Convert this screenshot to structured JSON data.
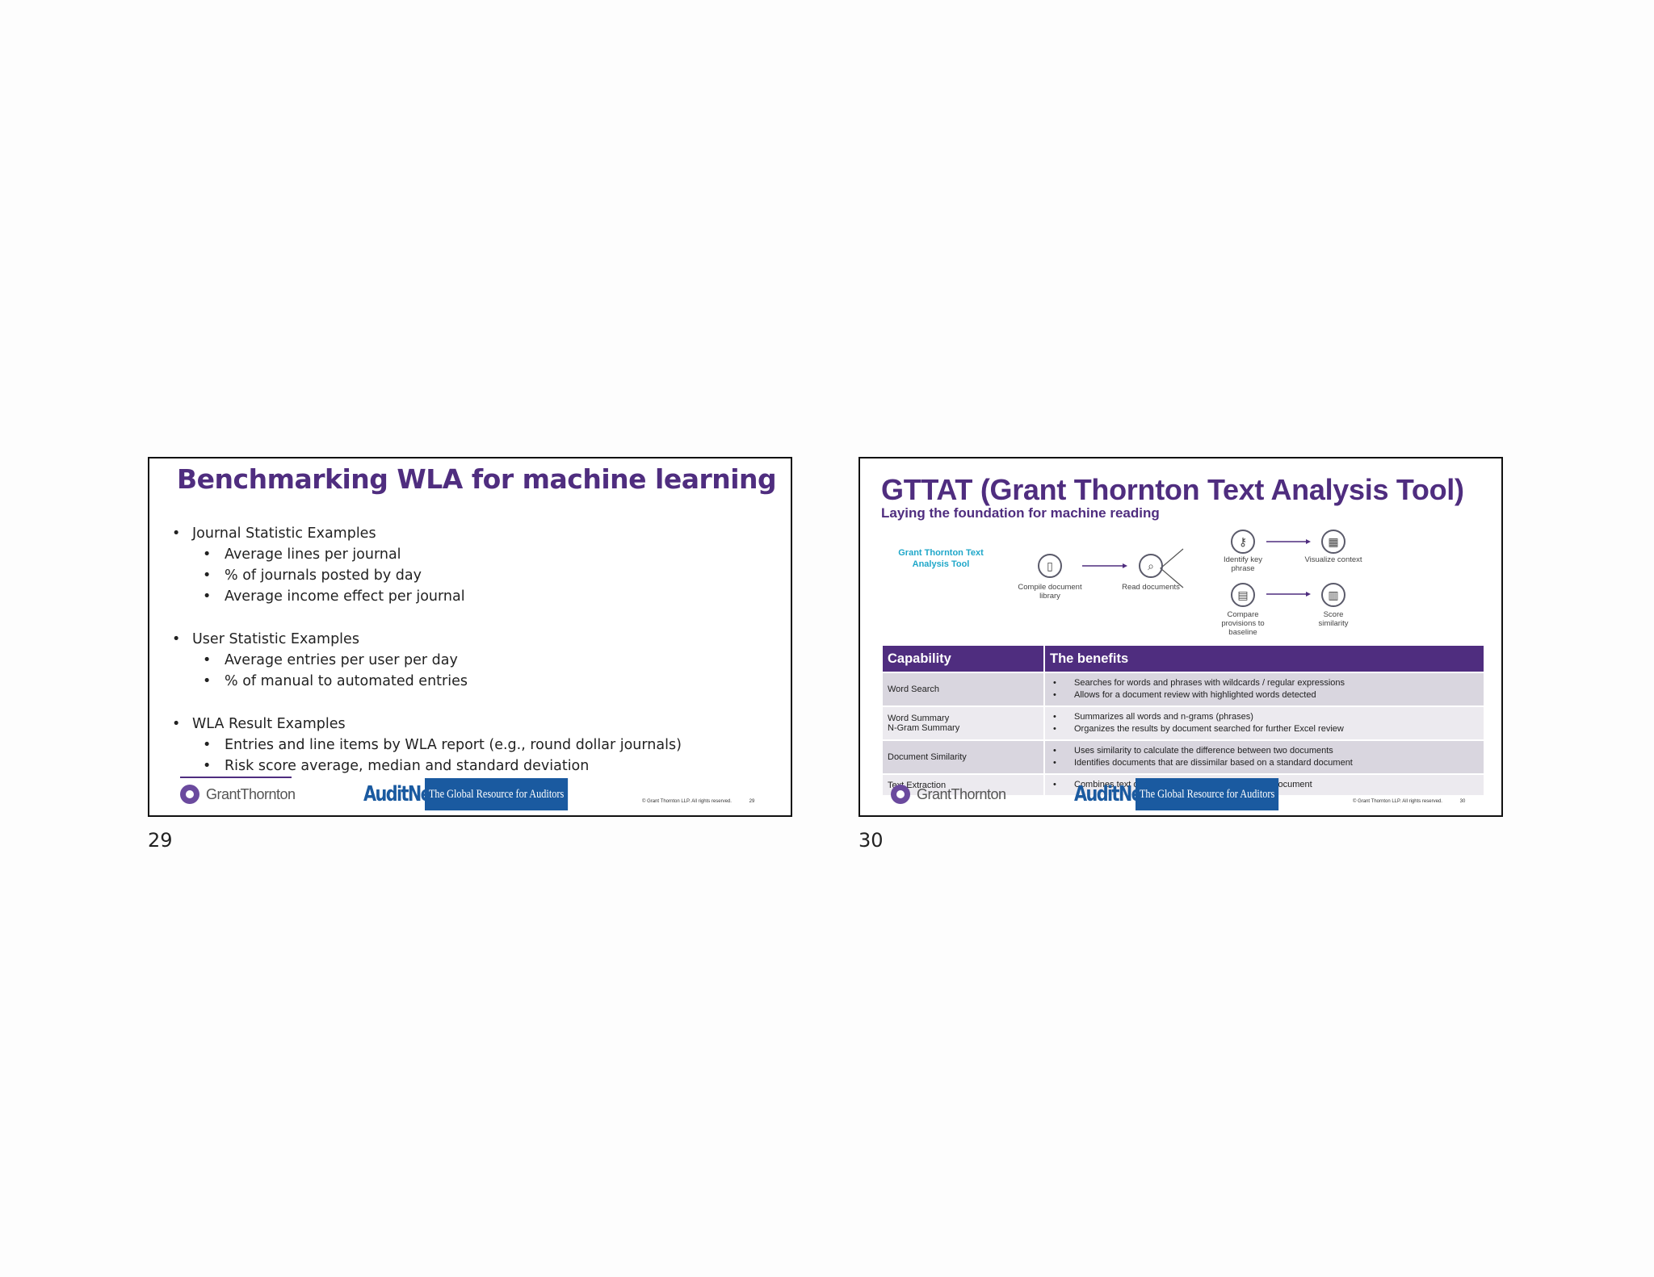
{
  "slide29": {
    "title": "Benchmarking WLA for machine learning",
    "sections": [
      {
        "heading": "Journal Statistic Examples",
        "items": [
          "Average lines per journal",
          "% of journals posted by day",
          "Average income effect per journal"
        ]
      },
      {
        "heading": "User Statistic Examples",
        "items": [
          "Average entries per user per day",
          "% of manual to automated entries"
        ]
      },
      {
        "heading": "WLA Result Examples",
        "items": [
          "Entries and line items by WLA report (e.g., round dollar journals)",
          "Risk score average, median and standard deviation"
        ]
      }
    ],
    "copyright": "© Grant Thornton LLP. All rights reserved.",
    "slide_number": "29",
    "page_number": "29"
  },
  "slide30": {
    "title": "GTTAT (Grant Thornton Text Analysis Tool)",
    "subtitle": "Laying the foundation for machine reading",
    "diagram": {
      "tool_label": "Grant Thornton Text Analysis Tool",
      "step1": "Compile document library",
      "step2": "Read documents",
      "step3a": "Identify key phrase",
      "step4a": "Visualize context",
      "step3b": "Compare provisions to baseline",
      "step4b": "Score similarity",
      "icons": [
        "book-icon",
        "magnifier-icon",
        "key-icon",
        "chart-window-icon",
        "document-icon",
        "score-chart-icon"
      ]
    },
    "table": {
      "headers": [
        "Capability",
        "The benefits"
      ],
      "rows": [
        {
          "capability": [
            "Word Search"
          ],
          "benefits": [
            "Searches for words and phrases with wildcards / regular expressions",
            "Allows for a document review with highlighted words detected"
          ]
        },
        {
          "capability": [
            "Word Summary",
            "N-Gram Summary"
          ],
          "benefits": [
            "Summarizes all words and n-grams (phrases)",
            "Organizes the results by document searched for further Excel review"
          ]
        },
        {
          "capability": [
            "Document Similarity"
          ],
          "benefits": [
            "Uses similarity to calculate the difference between two documents",
            "Identifies documents that are dissimilar based on a standard document"
          ]
        },
        {
          "capability": [
            "Text Extraction"
          ],
          "benefits": [
            "Combines text of multiple documents into one text document"
          ]
        }
      ]
    },
    "copyright": "© Grant Thornton LLP. All rights reserved.",
    "slide_number": "30",
    "page_number": "30"
  },
  "branding": {
    "gt_logo_text": "GrantThornton",
    "auditnet_word": "AuditNet",
    "auditnet_tagline": "The Global Resource for Auditors",
    "purple": "#4f2d7f",
    "auditnet_blue": "#1a5aa0",
    "teal": "#1fa7c9"
  }
}
